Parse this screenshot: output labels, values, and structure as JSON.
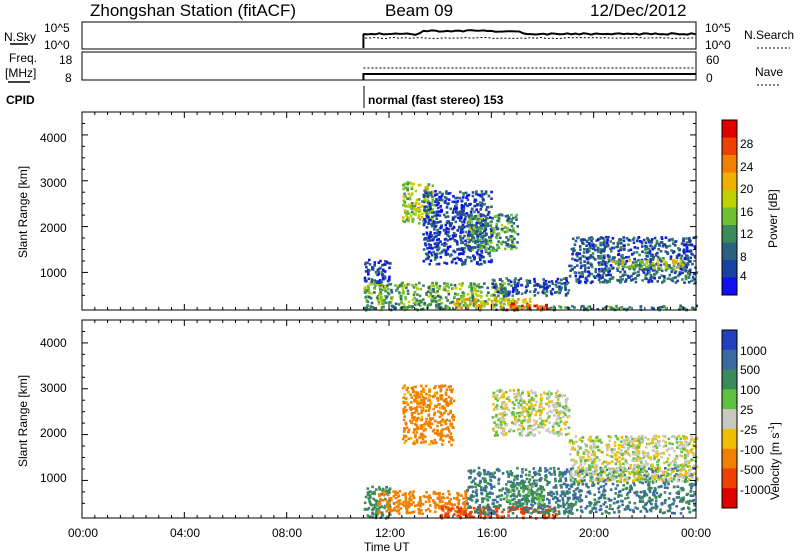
{
  "header": {
    "title": "Zhongshan Station (fitACF)",
    "beam": "Beam 09",
    "date": "12/Dec/2012"
  },
  "strip_nsky": {
    "left_label": "N.Sky",
    "left_ticks": [
      "10^5",
      "10^0"
    ],
    "right_ticks": [
      "10^5",
      "10^0"
    ],
    "right_label": "N.Search"
  },
  "strip_freq": {
    "left_label_line1": "Freq.",
    "left_label_line2": "[MHz]",
    "left_ticks": [
      "18",
      "8"
    ],
    "right_ticks": [
      "60",
      "0"
    ],
    "right_label": "Nave"
  },
  "cpid": {
    "label": "CPID",
    "mode_text": "normal (fast stereo) 153"
  },
  "power_panel": {
    "ylabel": "Slant Range [km]",
    "yticks": [
      "4000",
      "3000",
      "2000",
      "1000"
    ],
    "colorbar_label": "Power [dB]",
    "colorbar_ticks": [
      "28",
      "24",
      "20",
      "16",
      "12",
      "8",
      "4"
    ],
    "colorbar_colors": [
      "#e00000",
      "#f04000",
      "#f08000",
      "#f0b000",
      "#c0d000",
      "#70c030",
      "#3a8a5a",
      "#2a6080",
      "#1a40a0",
      "#1010f0"
    ]
  },
  "velocity_panel": {
    "ylabel": "Slant Range [km]",
    "yticks": [
      "4000",
      "3000",
      "2000",
      "1000"
    ],
    "colorbar_label": "Velocity [m s",
    "colorbar_label_sup": "-1",
    "colorbar_label_end": "]",
    "colorbar_ticks": [
      "1000",
      "500",
      "100",
      "25",
      "-25",
      "-100",
      "-500",
      "-1000"
    ],
    "colorbar_colors": [
      "#2040c0",
      "#3a6aa0",
      "#3a8a5a",
      "#60c040",
      "#c8c8c0",
      "#f0c000",
      "#f08000",
      "#f04000",
      "#e00000"
    ]
  },
  "xaxis": {
    "ticks": [
      "00:00",
      "04:00",
      "08:00",
      "12:00",
      "16:00",
      "20:00",
      "00:00"
    ],
    "label": "Time UT"
  },
  "chart_data": {
    "type": "heatmap",
    "panels": [
      "Power [dB]",
      "Velocity [m s-1]"
    ],
    "x_range_hours": [
      0,
      24
    ],
    "y_range_km": [
      180,
      4500
    ],
    "data_start_hour": 11,
    "power_blobs": [
      {
        "t": [
          11.0,
          24.0
        ],
        "r": [
          200,
          300
        ],
        "value": 12
      },
      {
        "t": [
          11.0,
          16.5
        ],
        "r": [
          300,
          800
        ],
        "value": 14
      },
      {
        "t": [
          14.5,
          17.5
        ],
        "r": [
          250,
          450
        ],
        "value": 20
      },
      {
        "t": [
          16.5,
          18.2
        ],
        "r": [
          200,
          350
        ],
        "value": 28
      },
      {
        "t": [
          11.0,
          12.0
        ],
        "r": [
          800,
          1300
        ],
        "value": 6
      },
      {
        "t": [
          12.5,
          13.7
        ],
        "r": [
          2100,
          3000
        ],
        "value": 16
      },
      {
        "t": [
          13.3,
          16.0
        ],
        "r": [
          1200,
          2800
        ],
        "value": 6
      },
      {
        "t": [
          15.0,
          17.0
        ],
        "r": [
          1500,
          2300
        ],
        "value": 12
      },
      {
        "t": [
          19.0,
          24.0
        ],
        "r": [
          800,
          1800
        ],
        "value": 8
      },
      {
        "t": [
          20.5,
          23.5
        ],
        "r": [
          1100,
          1300
        ],
        "value": 16
      },
      {
        "t": [
          16.0,
          19.0
        ],
        "r": [
          500,
          900
        ],
        "value": 8
      }
    ],
    "velocity_blobs": [
      {
        "t": [
          11.0,
          12.0
        ],
        "r": [
          200,
          900
        ],
        "value": 150
      },
      {
        "t": [
          11.5,
          15.0
        ],
        "r": [
          300,
          800
        ],
        "value": -400
      },
      {
        "t": [
          14.0,
          18.5
        ],
        "r": [
          200,
          450
        ],
        "value": -800
      },
      {
        "t": [
          12.5,
          14.5
        ],
        "r": [
          1800,
          3100
        ],
        "value": -150
      },
      {
        "t": [
          15.0,
          24.0
        ],
        "r": [
          300,
          1300
        ],
        "value": 300
      },
      {
        "t": [
          16.0,
          19.0
        ],
        "r": [
          2000,
          3000
        ],
        "value": 0
      },
      {
        "t": [
          19.0,
          24.0
        ],
        "r": [
          1000,
          2000
        ],
        "value": 0
      },
      {
        "t": [
          16.5,
          18.0
        ],
        "r": [
          500,
          1000
        ],
        "value": 80
      }
    ]
  }
}
